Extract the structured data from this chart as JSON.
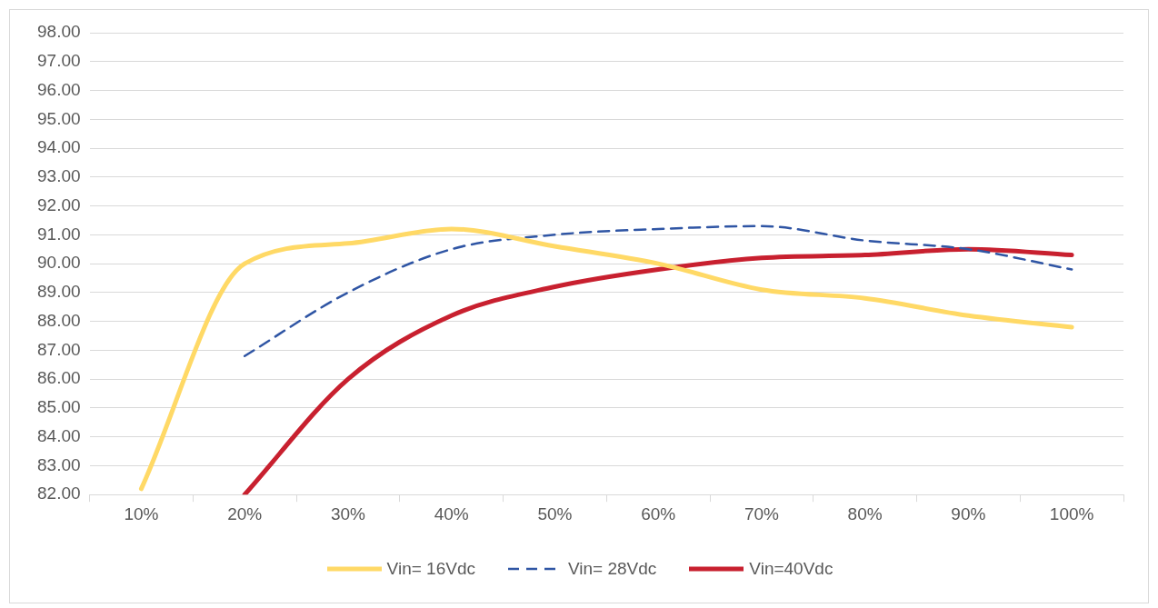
{
  "chart_data": {
    "type": "line",
    "categories": [
      "10%",
      "20%",
      "30%",
      "40%",
      "50%",
      "60%",
      "70%",
      "80%",
      "90%",
      "100%"
    ],
    "series": [
      {
        "name": "Vin= 16Vdc",
        "color": "#ffd966",
        "line_style": "solid",
        "values": [
          82.2,
          90.0,
          90.7,
          91.2,
          90.6,
          90.0,
          89.1,
          88.8,
          88.2,
          87.8
        ]
      },
      {
        "name": "Vin= 28Vdc",
        "color": "#2f55a4",
        "line_style": "dashed",
        "values": [
          null,
          86.8,
          89.0,
          90.5,
          91.0,
          91.2,
          91.3,
          90.8,
          90.5,
          89.8
        ]
      },
      {
        "name": "Vin=40Vdc",
        "color": "#c8202f",
        "line_style": "solid",
        "values": [
          null,
          82.0,
          86.0,
          88.2,
          89.2,
          89.8,
          90.2,
          90.3,
          90.5,
          90.3
        ]
      }
    ],
    "ylim": [
      82,
      98
    ],
    "yticks": [
      {
        "value": 82,
        "label": "82.00"
      },
      {
        "value": 83,
        "label": "83.00"
      },
      {
        "value": 84,
        "label": "84.00"
      },
      {
        "value": 85,
        "label": "85.00"
      },
      {
        "value": 86,
        "label": "86.00"
      },
      {
        "value": 87,
        "label": "87.00"
      },
      {
        "value": 88,
        "label": "88.00"
      },
      {
        "value": 89,
        "label": "89.00"
      },
      {
        "value": 90,
        "label": "90.00"
      },
      {
        "value": 91,
        "label": "91.00"
      },
      {
        "value": 92,
        "label": "92.00"
      },
      {
        "value": 93,
        "label": "93.00"
      },
      {
        "value": 94,
        "label": "94.00"
      },
      {
        "value": 95,
        "label": "95.00"
      },
      {
        "value": 96,
        "label": "96.00"
      },
      {
        "value": 97,
        "label": "97.00"
      },
      {
        "value": 98,
        "label": "98.00"
      }
    ],
    "grid": "y",
    "legend": "bottom",
    "marker": "none"
  }
}
